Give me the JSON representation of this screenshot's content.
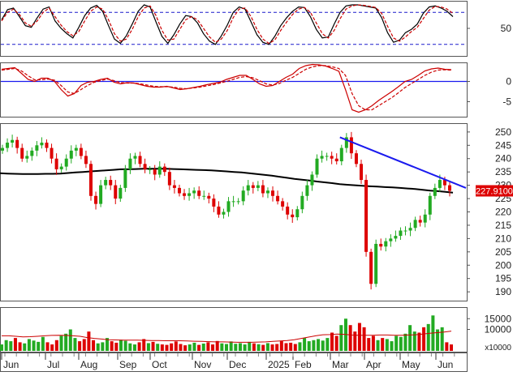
{
  "chart_data": [
    {
      "type": "line",
      "panel": "stochastic",
      "yticks": [
        50
      ],
      "ylim": [
        0,
        100
      ],
      "reference_levels": [
        80,
        20
      ],
      "series": [
        {
          "role": "k",
          "color": "#000000",
          "style": "solid",
          "values": [
            66,
            85,
            88,
            72,
            55,
            52,
            70,
            86,
            90,
            64,
            50,
            40,
            32,
            52,
            74,
            88,
            93,
            82,
            55,
            30,
            22,
            36,
            58,
            82,
            94,
            90,
            62,
            35,
            22,
            38,
            58,
            74,
            72,
            60,
            40,
            26,
            20,
            36,
            56,
            80,
            90,
            86,
            62,
            38,
            24,
            20,
            35,
            55,
            70,
            82,
            90,
            89,
            72,
            48,
            32,
            34,
            58,
            80,
            92,
            94,
            94,
            92,
            90,
            88,
            70,
            42,
            24,
            28,
            42,
            48,
            58,
            78,
            90,
            92,
            88,
            82,
            72
          ]
        },
        {
          "role": "d",
          "color": "#cc0000",
          "style": "dashed",
          "values": [
            64,
            80,
            86,
            76,
            60,
            54,
            64,
            80,
            88,
            72,
            56,
            44,
            36,
            44,
            64,
            82,
            90,
            86,
            66,
            40,
            26,
            30,
            48,
            72,
            88,
            92,
            74,
            46,
            28,
            30,
            48,
            66,
            72,
            66,
            50,
            34,
            24,
            30,
            46,
            70,
            86,
            88,
            72,
            48,
            30,
            22,
            28,
            46,
            62,
            76,
            86,
            89,
            80,
            60,
            40,
            32,
            46,
            68,
            86,
            92,
            94,
            93,
            91,
            89,
            78,
            54,
            32,
            26,
            34,
            44,
            52,
            68,
            84,
            91,
            90,
            86,
            78
          ]
        }
      ]
    },
    {
      "type": "line",
      "panel": "macd",
      "yticks": [
        0,
        -5
      ],
      "ylim": [
        -8.5,
        4.5
      ],
      "reference_levels": [
        0
      ],
      "series": [
        {
          "role": "macd",
          "color": "#cc0000",
          "style": "solid",
          "values": [
            3,
            3.2,
            3.4,
            2,
            0.5,
            0,
            0.8,
            0.8,
            0,
            -2,
            -3.6,
            -3,
            -1,
            -0.2,
            0,
            0.5,
            0.8,
            -0.2,
            -0.6,
            -0.3,
            -0.4,
            -0.8,
            -1.2,
            -1.4,
            -1.4,
            -1.2,
            -1.6,
            -2,
            -1.8,
            -1.5,
            -1.2,
            -0.8,
            -0.5,
            -0.2,
            0.5,
            1,
            1.5,
            1.5,
            0.5,
            -0.6,
            -1.2,
            -1,
            0,
            1,
            1.8,
            3.2,
            3.9,
            4.2,
            4.1,
            3.8,
            3.2,
            2.5,
            -2,
            -7,
            -7.6,
            -7,
            -6,
            -4.7,
            -3.6,
            -2.5,
            -1.3,
            0,
            0.5,
            1.5,
            2.6,
            3.1,
            3.3,
            3,
            2.9
          ]
        },
        {
          "role": "signal",
          "color": "#cc0000",
          "style": "dashed",
          "values": [
            2.8,
            3,
            3.2,
            2.6,
            1.4,
            0.4,
            0.4,
            0.6,
            0.3,
            -1,
            -2.6,
            -3,
            -2,
            -1,
            -0.2,
            0.2,
            0.6,
            0.2,
            -0.3,
            -0.4,
            -0.4,
            -0.6,
            -0.9,
            -1.2,
            -1.3,
            -1.3,
            -1.4,
            -1.7,
            -1.8,
            -1.6,
            -1.4,
            -1.1,
            -0.8,
            -0.4,
            0,
            0.5,
            1,
            1.2,
            0.9,
            0.2,
            -0.6,
            -0.9,
            -0.5,
            0.3,
            1,
            2,
            3,
            3.6,
            3.9,
            3.9,
            3.6,
            3.2,
            1.5,
            -3,
            -6,
            -7,
            -7,
            -6,
            -5,
            -4,
            -2.8,
            -1.5,
            -0.5,
            0.5,
            1.5,
            2.3,
            2.8,
            2.9,
            2.8
          ]
        }
      ]
    },
    {
      "type": "candlestick",
      "panel": "price",
      "yticks": [
        190,
        195,
        200,
        205,
        210,
        215,
        220,
        225,
        230,
        235,
        240,
        245,
        250
      ],
      "ylim": [
        187,
        253
      ],
      "last_price_label": "227.9100",
      "last_price": 227.91,
      "up_color": "#22aa22",
      "down_color": "#dd0000",
      "close": [
        244,
        246,
        247,
        244,
        240,
        241,
        243,
        245,
        246,
        244,
        240,
        236,
        237,
        240,
        243,
        244,
        241,
        238,
        226,
        223,
        230,
        232,
        230,
        225,
        229,
        236,
        240,
        241,
        238,
        236,
        236,
        234,
        237,
        235,
        230,
        229,
        227,
        226,
        227,
        228,
        226,
        226,
        225,
        222,
        219,
        220,
        224,
        224,
        224,
        228,
        230,
        229,
        230,
        227,
        228,
        226,
        224,
        222,
        219,
        218,
        221,
        226,
        230,
        234,
        240,
        241,
        241,
        240,
        239,
        244,
        248,
        242,
        238,
        232,
        205,
        193,
        208,
        207,
        209,
        210,
        211,
        213,
        213,
        214,
        217,
        216,
        219,
        226,
        229,
        232,
        230,
        227.91
      ],
      "moving_average": {
        "color": "#000000",
        "values": [
          234.5,
          234.4,
          234.3,
          234.2,
          234.2,
          234.2,
          234.3,
          234.3,
          234.4,
          234.6,
          234.8,
          235,
          235.2,
          235.4,
          235.6,
          235.8,
          236,
          236,
          236.1,
          236.2,
          236.2,
          236.2,
          236.2,
          236.1,
          236,
          235.9,
          235.8,
          235.7,
          235.6,
          235.4,
          235.2,
          235,
          234.8,
          234.5,
          234.2,
          233.9,
          233.6,
          233.2,
          232.8,
          232.4,
          232.1,
          231.8,
          231.4,
          231.1,
          230.8,
          230.4,
          230.2,
          230,
          229.8,
          229.6,
          229.5,
          229.3,
          229.2,
          229,
          228.8,
          228.6,
          228.3,
          228,
          227.8,
          227.5,
          227.2
        ]
      },
      "trendline": {
        "color": "#1a1aee",
        "from": {
          "x": "Mar",
          "y": 248
        },
        "to": {
          "x": "end",
          "y": 229
        }
      }
    },
    {
      "type": "bar",
      "panel": "volume",
      "yticks": [
        15000,
        10000
      ],
      "unit_label": "x10000",
      "ylim": [
        0,
        20000
      ],
      "up_color": "#22aa22",
      "down_color": "#dd0000",
      "values": [
        3000,
        5000,
        4500,
        6000,
        4000,
        3500,
        5500,
        4800,
        4200,
        6500,
        4000,
        3000,
        5000,
        7000,
        8000,
        10000,
        6000,
        4500,
        5500,
        9000,
        5000,
        3500,
        4000,
        6000,
        4500,
        3800,
        5200,
        4700,
        3500,
        3000,
        4000,
        5500,
        3600,
        4200,
        3300,
        3000,
        2800,
        3500,
        4400,
        3200,
        2600,
        3000,
        3800,
        2800,
        3400,
        4000,
        3000,
        4600,
        3500,
        3200,
        4400,
        3300,
        3600,
        3000,
        4200,
        3500,
        3100,
        2800,
        3600,
        3000,
        3200,
        4500,
        3600,
        3800,
        3200,
        4000,
        6000,
        4500,
        5000,
        5500,
        4800,
        6000,
        8500,
        7000,
        12000,
        15000,
        12000,
        9000,
        13000,
        11000,
        6000,
        7000,
        5000,
        6000,
        5500,
        4500,
        7000,
        6500,
        8000,
        12000,
        9000,
        8500,
        11000,
        12500,
        16500,
        10000,
        11000,
        4000,
        3000
      ],
      "moving_average": {
        "color": "#cc0000",
        "values": [
          7000,
          7000,
          6800,
          6500,
          6600,
          6800,
          7000,
          7200,
          7300,
          7200,
          7000,
          6800,
          6200,
          5800,
          5500,
          5200,
          5100,
          5000,
          5000,
          5000,
          4900,
          4800,
          4800,
          4700,
          4700,
          4700,
          4600,
          4500,
          4400,
          4300,
          4200,
          4200,
          4100,
          4000,
          4000,
          4000,
          4100,
          4200,
          4400,
          4600,
          4800,
          5200,
          5800,
          6400,
          7000,
          7500,
          7600,
          7800,
          7700,
          7400,
          7300,
          7300,
          7300,
          7400,
          7400,
          7300,
          7300,
          7400,
          7500,
          7800,
          8200,
          8500,
          8800,
          9200
        ]
      },
      "x_tick_labels": [
        "Jun",
        "Jul",
        "Aug",
        "Sep",
        "Oct",
        "Nov",
        "Dec",
        "2025",
        "Feb",
        "Mar",
        "Apr",
        "May",
        "Jun"
      ]
    }
  ]
}
